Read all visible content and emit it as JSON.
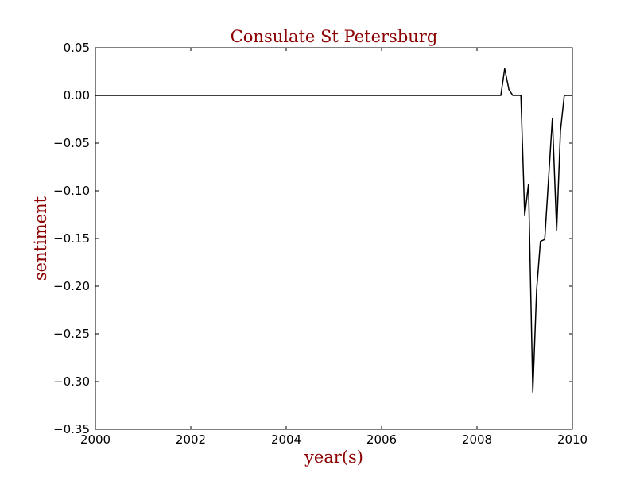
{
  "chart_data": {
    "type": "line",
    "title": "Consulate St Petersburg",
    "xlabel": "year(s)",
    "ylabel": "sentiment",
    "xlim": [
      2000,
      2010
    ],
    "ylim": [
      -0.35,
      0.05
    ],
    "grid": false,
    "legend": "none",
    "xticks": [
      2000,
      2002,
      2004,
      2006,
      2008,
      2010
    ],
    "xtick_labels": [
      "2000",
      "2002",
      "2004",
      "2006",
      "2008",
      "2010"
    ],
    "yticks": [
      0.05,
      0.0,
      -0.05,
      -0.1,
      -0.15,
      -0.2,
      -0.25,
      -0.3,
      -0.35
    ],
    "ytick_labels": [
      "0.05",
      "0.00",
      "−0.05",
      "−0.10",
      "−0.15",
      "−0.20",
      "−0.25",
      "−0.30",
      "−0.35"
    ],
    "colors": {
      "title": "#8b0000",
      "axis_label": "#8b0000",
      "line": "#000000",
      "frame": "#000000"
    },
    "series": [
      {
        "x": [
          2000.0,
          2008.5,
          2008.58,
          2008.67,
          2008.75,
          2008.92,
          2009.0,
          2009.08,
          2009.17,
          2009.25,
          2009.33,
          2009.42,
          2009.58,
          2009.67,
          2009.75,
          2009.83,
          2009.92,
          2010.0
        ],
        "y": [
          0.0,
          0.0,
          0.028,
          0.006,
          0.0,
          0.0,
          -0.126,
          -0.093,
          -0.311,
          -0.204,
          -0.153,
          -0.151,
          -0.024,
          -0.142,
          -0.037,
          0.0,
          0.0,
          0.0
        ]
      }
    ]
  }
}
